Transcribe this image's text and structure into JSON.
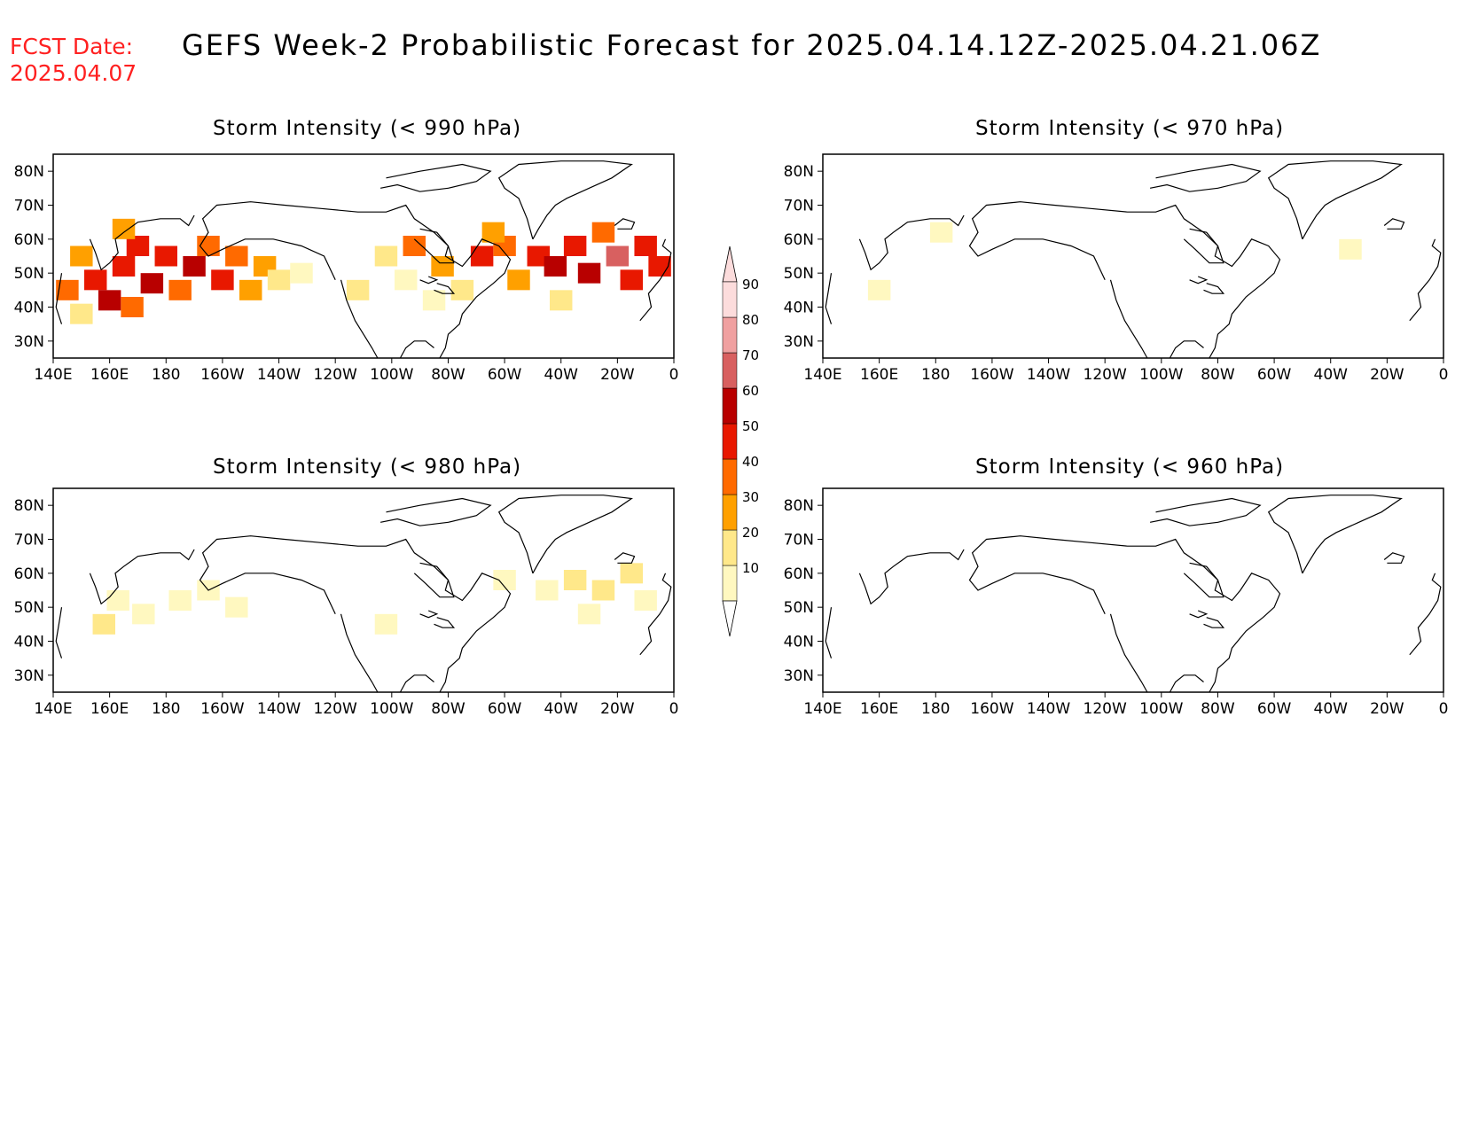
{
  "header": {
    "fcst_label": "FCST Date:",
    "fcst_date": "2025.04.07",
    "title": "GEFS Week-2 Probabilistic Forecast for 2025.04.14.12Z-2025.04.21.06Z"
  },
  "axes": {
    "lon_labels": [
      "140E",
      "160E",
      "180",
      "160W",
      "140W",
      "120W",
      "100W",
      "80W",
      "60W",
      "40W",
      "20W",
      "0"
    ],
    "lon_values": [
      140,
      160,
      180,
      200,
      220,
      240,
      260,
      280,
      300,
      320,
      340,
      360
    ],
    "lat_labels": [
      "80N",
      "70N",
      "60N",
      "50N",
      "40N",
      "30N"
    ],
    "lat_values": [
      80,
      70,
      60,
      50,
      40,
      30
    ],
    "lon_range": [
      140,
      360
    ],
    "lat_range": [
      25,
      85
    ]
  },
  "colorbar": {
    "levels": [
      "10",
      "20",
      "30",
      "40",
      "50",
      "60",
      "70",
      "80",
      "90"
    ],
    "colors": [
      "#fff8c0",
      "#ffe88a",
      "#ffa000",
      "#ff6a00",
      "#e81800",
      "#b80000",
      "#d86060",
      "#f0a0a0",
      "#fcdcdc"
    ]
  },
  "panels": [
    {
      "id": "p990",
      "title": "Storm Intensity (< 990 hPa)"
    },
    {
      "id": "p970",
      "title": "Storm Intensity (< 970 hPa)"
    },
    {
      "id": "p980",
      "title": "Storm Intensity (< 980 hPa)"
    },
    {
      "id": "p960",
      "title": "Storm Intensity (< 960 hPa)"
    }
  ],
  "chart_data": {
    "type": "heatmap",
    "units": "probability (%)",
    "fields": {
      "p990": [
        {
          "lon": 145,
          "lat": 45,
          "p": 40
        },
        {
          "lon": 150,
          "lat": 55,
          "p": 30
        },
        {
          "lon": 155,
          "lat": 48,
          "p": 50
        },
        {
          "lon": 160,
          "lat": 42,
          "p": 60
        },
        {
          "lon": 165,
          "lat": 52,
          "p": 50
        },
        {
          "lon": 170,
          "lat": 58,
          "p": 55
        },
        {
          "lon": 175,
          "lat": 47,
          "p": 60
        },
        {
          "lon": 180,
          "lat": 55,
          "p": 55
        },
        {
          "lon": 185,
          "lat": 45,
          "p": 45
        },
        {
          "lon": 190,
          "lat": 52,
          "p": 60
        },
        {
          "lon": 195,
          "lat": 58,
          "p": 45
        },
        {
          "lon": 200,
          "lat": 48,
          "p": 50
        },
        {
          "lon": 205,
          "lat": 55,
          "p": 40
        },
        {
          "lon": 210,
          "lat": 45,
          "p": 35
        },
        {
          "lon": 215,
          "lat": 52,
          "p": 30
        },
        {
          "lon": 220,
          "lat": 48,
          "p": 25
        },
        {
          "lon": 228,
          "lat": 50,
          "p": 15
        },
        {
          "lon": 150,
          "lat": 38,
          "p": 25
        },
        {
          "lon": 168,
          "lat": 40,
          "p": 40
        },
        {
          "lon": 165,
          "lat": 63,
          "p": 30
        },
        {
          "lon": 248,
          "lat": 45,
          "p": 20
        },
        {
          "lon": 258,
          "lat": 55,
          "p": 25
        },
        {
          "lon": 268,
          "lat": 58,
          "p": 40
        },
        {
          "lon": 278,
          "lat": 52,
          "p": 30
        },
        {
          "lon": 285,
          "lat": 45,
          "p": 25
        },
        {
          "lon": 292,
          "lat": 55,
          "p": 50
        },
        {
          "lon": 300,
          "lat": 58,
          "p": 45
        },
        {
          "lon": 305,
          "lat": 48,
          "p": 35
        },
        {
          "lon": 312,
          "lat": 55,
          "p": 55
        },
        {
          "lon": 318,
          "lat": 52,
          "p": 60
        },
        {
          "lon": 325,
          "lat": 58,
          "p": 55
        },
        {
          "lon": 330,
          "lat": 50,
          "p": 60
        },
        {
          "lon": 335,
          "lat": 62,
          "p": 45
        },
        {
          "lon": 340,
          "lat": 55,
          "p": 70
        },
        {
          "lon": 345,
          "lat": 48,
          "p": 50
        },
        {
          "lon": 350,
          "lat": 58,
          "p": 55
        },
        {
          "lon": 355,
          "lat": 52,
          "p": 50
        },
        {
          "lon": 320,
          "lat": 42,
          "p": 20
        },
        {
          "lon": 275,
          "lat": 42,
          "p": 15
        },
        {
          "lon": 265,
          "lat": 48,
          "p": 15
        },
        {
          "lon": 296,
          "lat": 62,
          "p": 35
        }
      ],
      "p980": [
        {
          "lon": 158,
          "lat": 45,
          "p": 25
        },
        {
          "lon": 163,
          "lat": 52,
          "p": 15
        },
        {
          "lon": 172,
          "lat": 48,
          "p": 12
        },
        {
          "lon": 185,
          "lat": 52,
          "p": 12
        },
        {
          "lon": 195,
          "lat": 55,
          "p": 12
        },
        {
          "lon": 205,
          "lat": 50,
          "p": 10
        },
        {
          "lon": 258,
          "lat": 45,
          "p": 10
        },
        {
          "lon": 300,
          "lat": 58,
          "p": 15
        },
        {
          "lon": 315,
          "lat": 55,
          "p": 15
        },
        {
          "lon": 325,
          "lat": 58,
          "p": 20
        },
        {
          "lon": 335,
          "lat": 55,
          "p": 25
        },
        {
          "lon": 345,
          "lat": 60,
          "p": 20
        },
        {
          "lon": 350,
          "lat": 52,
          "p": 15
        },
        {
          "lon": 330,
          "lat": 48,
          "p": 12
        }
      ],
      "p970": [
        {
          "lon": 160,
          "lat": 45,
          "p": 10
        },
        {
          "lon": 182,
          "lat": 62,
          "p": 10
        },
        {
          "lon": 327,
          "lat": 57,
          "p": 10
        }
      ],
      "p960": []
    }
  }
}
